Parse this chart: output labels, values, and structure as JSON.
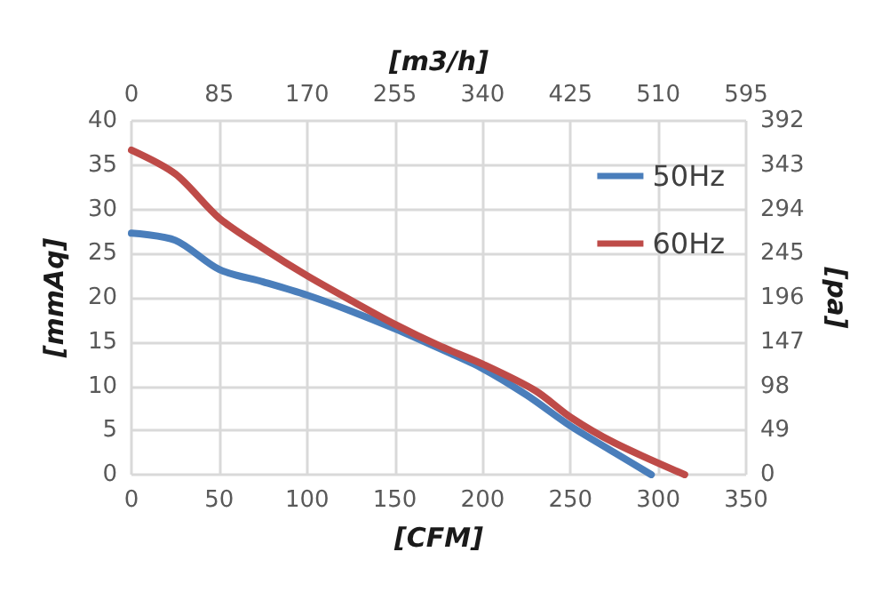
{
  "chart_data": {
    "type": "line",
    "xlabel": "[CFM]",
    "x2label": "[m3/h]",
    "ylabel": "[mmAq]",
    "y2label": "[pa]",
    "xlim": [
      0,
      350
    ],
    "xticks": [
      0,
      50,
      100,
      150,
      200,
      250,
      300,
      350
    ],
    "x2lim": [
      0,
      595
    ],
    "x2ticks": [
      0,
      85,
      170,
      255,
      340,
      425,
      510,
      595
    ],
    "ylim": [
      0,
      40
    ],
    "yticks": [
      0,
      5,
      10,
      15,
      20,
      25,
      30,
      35,
      40
    ],
    "y2lim": [
      0,
      392
    ],
    "y2ticks": [
      0,
      49,
      98,
      147,
      196,
      245,
      294,
      343,
      392
    ],
    "grid": true,
    "legend": "top right",
    "marker": "none",
    "line_style": "solid",
    "series": [
      {
        "name": "50Hz",
        "color": "#4a7ebb",
        "x": [
          0,
          25,
          50,
          75,
          100,
          125,
          150,
          175,
          200,
          225,
          250,
          275,
          296
        ],
        "values": [
          27.3,
          26.5,
          23.2,
          21.8,
          20.3,
          18.5,
          16.5,
          14.3,
          12,
          9,
          5.5,
          2.5,
          0
        ]
      },
      {
        "name": "60Hz",
        "color": "#be4b48",
        "x": [
          0,
          25,
          50,
          75,
          100,
          125,
          150,
          175,
          200,
          230,
          250,
          275,
          315
        ],
        "values": [
          36.7,
          34,
          29,
          25.6,
          22.5,
          19.7,
          17,
          14.6,
          12.5,
          9.5,
          6.5,
          3.6,
          0
        ]
      }
    ]
  }
}
